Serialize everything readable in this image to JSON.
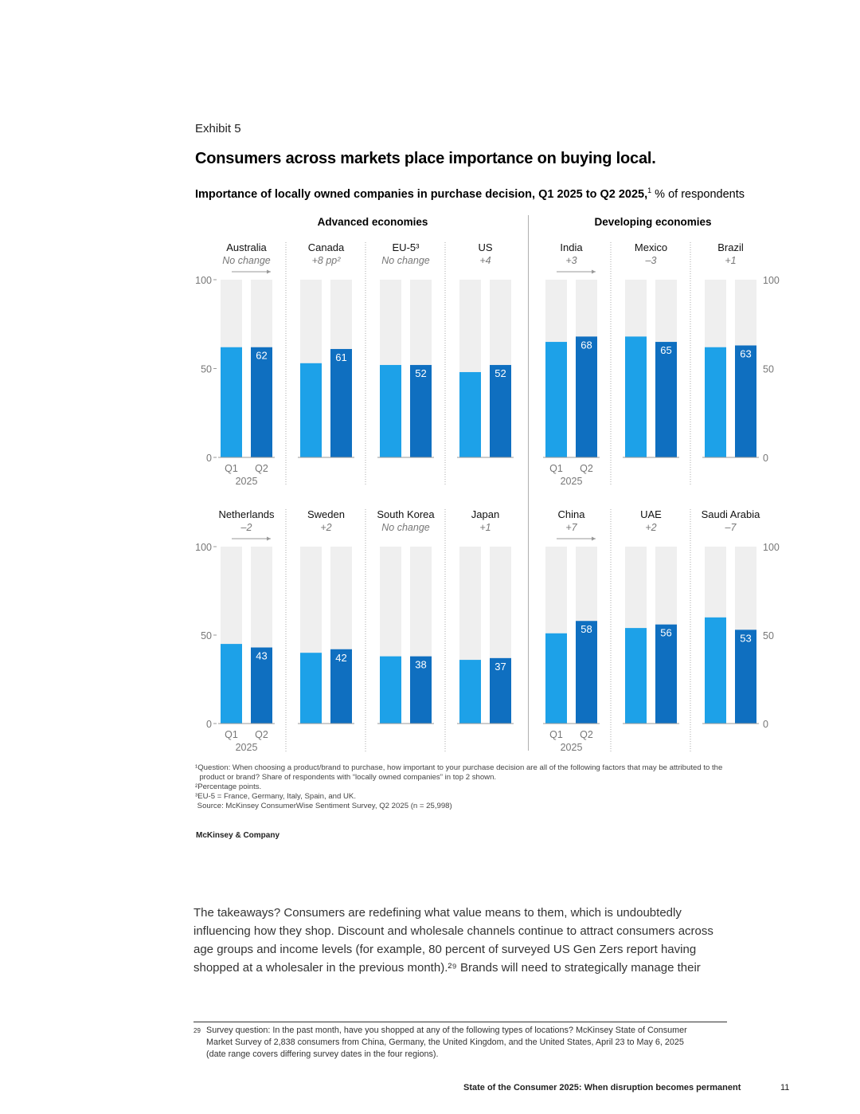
{
  "exhibit": "Exhibit 5",
  "title": "Consumers across markets place importance on buying local.",
  "subtitle_bold": "Importance of locally owned companies in purchase decision, Q1 2025 to Q2 2025,",
  "subtitle_sup": "1",
  "subtitle_rest": " % of respondents",
  "groups": {
    "advanced": "Advanced economies",
    "developing": "Developing economies"
  },
  "axis": {
    "ticks": [
      "100",
      "50",
      "0"
    ],
    "q1": "Q1",
    "q2": "Q2",
    "year": "2025"
  },
  "colors": {
    "q1": "#1da1e8",
    "q2": "#0f6fc0",
    "track": "#efefef"
  },
  "chart_data": {
    "type": "bar",
    "ylim": [
      0,
      100
    ],
    "categories": [
      "Q1 2025",
      "Q2 2025"
    ],
    "markets": [
      {
        "name": "Australia",
        "change": "No change",
        "q1": 62,
        "q2": 62,
        "group": "advanced",
        "row": 0
      },
      {
        "name": "Canada",
        "change": "+8 pp²",
        "q1": 53,
        "q2": 61,
        "group": "advanced",
        "row": 0
      },
      {
        "name": "EU-5³",
        "change": "No change",
        "q1": 52,
        "q2": 52,
        "group": "advanced",
        "row": 0
      },
      {
        "name": "US",
        "change": "+4",
        "q1": 48,
        "q2": 52,
        "group": "advanced",
        "row": 0
      },
      {
        "name": "India",
        "change": "+3",
        "q1": 65,
        "q2": 68,
        "group": "developing",
        "row": 0
      },
      {
        "name": "Mexico",
        "change": "–3",
        "q1": 68,
        "q2": 65,
        "group": "developing",
        "row": 0
      },
      {
        "name": "Brazil",
        "change": "+1",
        "q1": 62,
        "q2": 63,
        "group": "developing",
        "row": 0
      },
      {
        "name": "Netherlands",
        "change": "–2",
        "q1": 45,
        "q2": 43,
        "group": "advanced",
        "row": 1
      },
      {
        "name": "Sweden",
        "change": "+2",
        "q1": 40,
        "q2": 42,
        "group": "advanced",
        "row": 1
      },
      {
        "name": "South Korea",
        "change": "No change",
        "q1": 38,
        "q2": 38,
        "group": "advanced",
        "row": 1
      },
      {
        "name": "Japan",
        "change": "+1",
        "q1": 36,
        "q2": 37,
        "group": "advanced",
        "row": 1
      },
      {
        "name": "China",
        "change": "+7",
        "q1": 51,
        "q2": 58,
        "group": "developing",
        "row": 1
      },
      {
        "name": "UAE",
        "change": "+2",
        "q1": 54,
        "q2": 56,
        "group": "developing",
        "row": 1
      },
      {
        "name": "Saudi Arabia",
        "change": "–7",
        "q1": 60,
        "q2": 53,
        "group": "developing",
        "row": 1
      }
    ]
  },
  "footnotes": [
    "¹Question: When choosing a product/brand to purchase, how important to your purchase decision are all of the following factors that may be attributed to the",
    "  product or brand? Share of respondents with “locally owned companies” in top 2 shown.",
    "²Percentage points.",
    "³EU-5 = France, Germany, Italy, Spain, and UK.",
    " Source: McKinsey ConsumerWise Sentiment Survey, Q2 2025 (n = 25,998)"
  ],
  "brand": "McKinsey & Company",
  "body_lines": [
    "The takeaways? Consumers are redefining what value means to them, which is undoubtedly",
    "influencing how they shop. Discount and wholesale channels continue to attract consumers across",
    "age groups and income levels (for example, 80 percent of surveyed US Gen Zers report having",
    "shopped at a wholesaler in the previous month).²⁹ Brands will need to strategically manage their"
  ],
  "footnote29_num": "29",
  "footnote29_lines": [
    "Survey question: In the past month, have you shopped at any of the following types of locations? McKinsey State of Consumer",
    "Market Survey of 2,838 consumers from China, Germany, the United Kingdom, and the United States, April 23 to May 6, 2025",
    "(date range covers differing survey dates in the four regions)."
  ],
  "footer": "State of the Consumer 2025: When disruption becomes permanent",
  "page_number": "11"
}
